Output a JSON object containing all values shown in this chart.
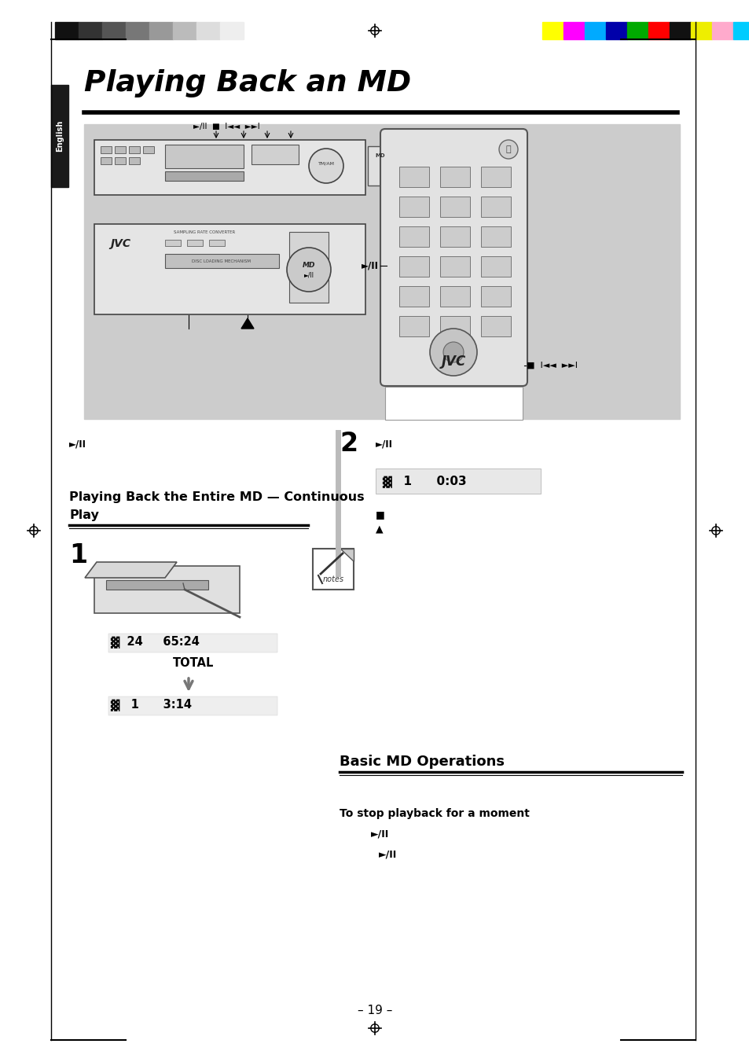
{
  "title": "Playing Back an MD",
  "page_num": "– 19 –",
  "bg_color": "#ffffff",
  "tab_color": "#1a1a1a",
  "tab_text": "English",
  "gray_box_color": "#cccccc",
  "color_bars_left": [
    "#111111",
    "#333333",
    "#555555",
    "#777777",
    "#999999",
    "#bbbbbb",
    "#dddddd",
    "#eeeeee"
  ],
  "color_bars_right": [
    "#ffff00",
    "#ff00ff",
    "#00aaff",
    "#0000aa",
    "#00aa00",
    "#ff0000",
    "#111111",
    "#eeee00",
    "#ffaacc",
    "#00ccff"
  ],
  "section2_title_line1": "Playing Back the Entire MD — Continuous",
  "section2_title_line2": "Play",
  "section3_title": "Basic MD Operations",
  "display1_line1": "▓  24     65:24",
  "display1_line2": "          TOTAL",
  "display1_line3": "▓   1      3:14",
  "display2_line1": "▓   1      0:03",
  "play_pause": "►/II",
  "stop_symbol": "■",
  "eject_symbol": "▲",
  "stop_section_title": "To stop playback for a moment",
  "stop_text1": "►/II",
  "stop_text2": "►/II"
}
